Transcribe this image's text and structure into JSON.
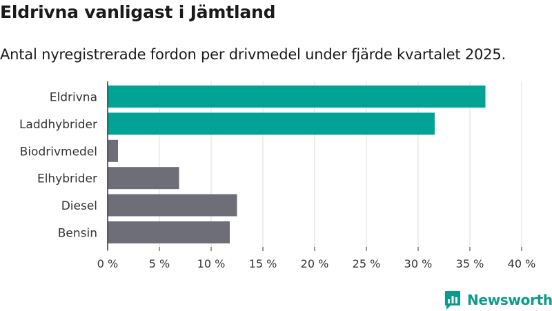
{
  "title": "Eldrivna vanligast i Jämtland",
  "subtitle": "Antal nyregistrerade fordon per drivmedel under fjärde kvartalet 2025.",
  "brand": {
    "name": "Newsworthy",
    "icon": "newsworthy-logo-icon"
  },
  "colors": {
    "highlight": "#00a396",
    "default": "#6e6e78",
    "grid": "#dddddd",
    "brand": "#0a9b8b"
  },
  "chart_data": {
    "type": "bar",
    "orientation": "horizontal",
    "title": "Eldrivna vanligast i Jämtland",
    "subtitle": "Antal nyregistrerade fordon per drivmedel under fjärde kvartalet 2025.",
    "categories": [
      "Eldrivna",
      "Laddhybrider",
      "Biodrivmedel",
      "Elhybrider",
      "Diesel",
      "Bensin"
    ],
    "values": [
      36.5,
      31.6,
      1.0,
      6.9,
      12.5,
      11.8
    ],
    "highlighted": [
      true,
      true,
      false,
      false,
      false,
      false
    ],
    "unit": "%",
    "xlim": [
      0,
      40
    ],
    "xticks": [
      0,
      5,
      10,
      15,
      20,
      25,
      30,
      35,
      40
    ],
    "xtick_labels": [
      "0 %",
      "5 %",
      "10 %",
      "15 %",
      "20 %",
      "25 %",
      "30 %",
      "35 %",
      "40 %"
    ],
    "xlabel": "",
    "ylabel": "",
    "grid": true,
    "legend": "none"
  }
}
